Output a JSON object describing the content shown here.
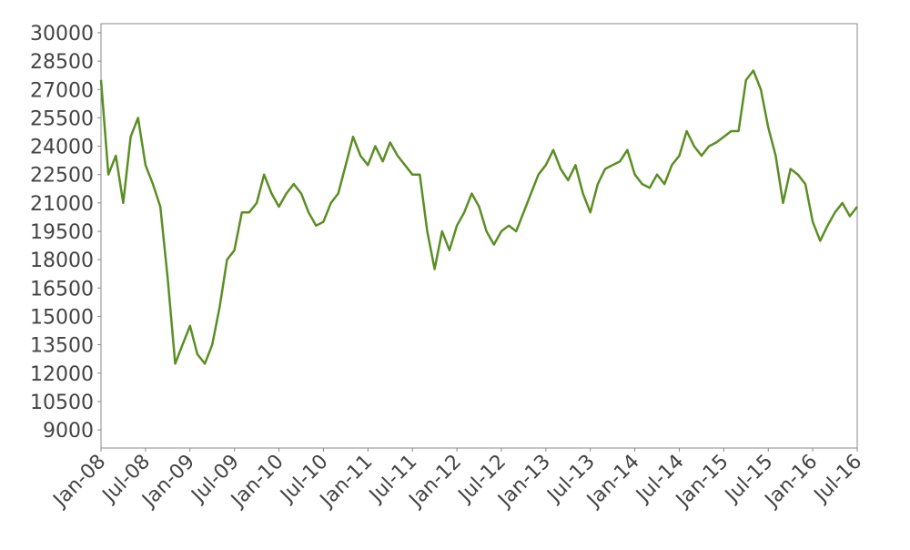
{
  "chart_data": {
    "type": "line",
    "x": [
      "2008-01",
      "2008-02",
      "2008-03",
      "2008-04",
      "2008-05",
      "2008-06",
      "2008-07",
      "2008-08",
      "2008-09",
      "2008-10",
      "2008-11",
      "2008-12",
      "2009-01",
      "2009-02",
      "2009-03",
      "2009-04",
      "2009-05",
      "2009-06",
      "2009-07",
      "2009-08",
      "2009-09",
      "2009-10",
      "2009-11",
      "2009-12",
      "2010-01",
      "2010-02",
      "2010-03",
      "2010-04",
      "2010-05",
      "2010-06",
      "2010-07",
      "2010-08",
      "2010-09",
      "2010-10",
      "2010-11",
      "2010-12",
      "2011-01",
      "2011-02",
      "2011-03",
      "2011-04",
      "2011-05",
      "2011-06",
      "2011-07",
      "2011-08",
      "2011-09",
      "2011-10",
      "2011-11",
      "2011-12",
      "2012-01",
      "2012-02",
      "2012-03",
      "2012-04",
      "2012-05",
      "2012-06",
      "2012-07",
      "2012-08",
      "2012-09",
      "2012-10",
      "2012-11",
      "2012-12",
      "2013-01",
      "2013-02",
      "2013-03",
      "2013-04",
      "2013-05",
      "2013-06",
      "2013-07",
      "2013-08",
      "2013-09",
      "2013-10",
      "2013-11",
      "2013-12",
      "2014-01",
      "2014-02",
      "2014-03",
      "2014-04",
      "2014-05",
      "2014-06",
      "2014-07",
      "2014-08",
      "2014-09",
      "2014-10",
      "2014-11",
      "2014-12",
      "2015-01",
      "2015-02",
      "2015-03",
      "2015-04",
      "2015-05",
      "2015-06",
      "2015-07",
      "2015-08",
      "2015-09",
      "2015-10",
      "2015-11",
      "2015-12",
      "2016-01",
      "2016-02",
      "2016-03",
      "2016-04",
      "2016-05",
      "2016-06",
      "2016-07"
    ],
    "series": [
      {
        "color": "#5b8e23",
        "values": [
          27500,
          22500,
          23500,
          21000,
          24500,
          25500,
          23000,
          22000,
          20800,
          17000,
          12500,
          13500,
          14500,
          13000,
          12500,
          13500,
          15500,
          18000,
          18500,
          20500,
          20500,
          21000,
          22500,
          21500,
          20800,
          21500,
          22000,
          21500,
          20500,
          19800,
          20000,
          21000,
          21500,
          23000,
          24500,
          23500,
          23000,
          24000,
          23200,
          24200,
          23500,
          23000,
          22500,
          22500,
          19500,
          17500,
          19500,
          18500,
          19800,
          20500,
          21500,
          20800,
          19500,
          18800,
          19500,
          19800,
          19500,
          20500,
          21500,
          22500,
          23000,
          23800,
          22800,
          22200,
          23000,
          21500,
          20500,
          22000,
          22800,
          23000,
          23200,
          23800,
          22500,
          22000,
          21800,
          22500,
          22000,
          23000,
          23500,
          24800,
          24000,
          23500,
          24000,
          24200,
          24500,
          24800,
          24800,
          27500,
          28000,
          27000,
          25000,
          23500,
          21000,
          22800,
          22500,
          22000,
          20000,
          19000,
          19800,
          20500,
          21000,
          20300,
          20800
        ]
      }
    ],
    "ylim": [
      8040,
      30480
    ],
    "yticks": [
      9000,
      10500,
      12000,
      13500,
      15000,
      16500,
      18000,
      19500,
      21000,
      22500,
      24000,
      25500,
      27000,
      28500,
      30000
    ],
    "xticks": [
      {
        "value": "2008-01",
        "label": "Jan-08"
      },
      {
        "value": "2008-07",
        "label": "Jul-08"
      },
      {
        "value": "2009-01",
        "label": "Jan-09"
      },
      {
        "value": "2009-07",
        "label": "Jul-09"
      },
      {
        "value": "2010-01",
        "label": "Jan-10"
      },
      {
        "value": "2010-07",
        "label": "Jul-10"
      },
      {
        "value": "2011-01",
        "label": "Jan-11"
      },
      {
        "value": "2011-07",
        "label": "Jul-11"
      },
      {
        "value": "2012-01",
        "label": "Jan-12"
      },
      {
        "value": "2012-07",
        "label": "Jul-12"
      },
      {
        "value": "2013-01",
        "label": "Jan-13"
      },
      {
        "value": "2013-07",
        "label": "Jul-13"
      },
      {
        "value": "2014-01",
        "label": "Jan-14"
      },
      {
        "value": "2014-07",
        "label": "Jul-14"
      },
      {
        "value": "2015-01",
        "label": "Jan-15"
      },
      {
        "value": "2015-07",
        "label": "Jul-15"
      },
      {
        "value": "2016-01",
        "label": "Jan-16"
      },
      {
        "value": "2016-07",
        "label": "Jul-16"
      }
    ],
    "grid": false
  }
}
